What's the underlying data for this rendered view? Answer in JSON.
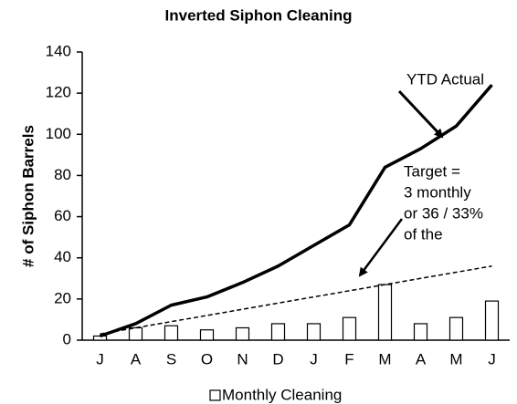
{
  "chart_data": {
    "type": "bar",
    "title": "Inverted Siphon Cleaning",
    "y_label": "# of Siphon Barrels",
    "categories": [
      "J",
      "A",
      "S",
      "O",
      "N",
      "D",
      "J",
      "F",
      "M",
      "A",
      "M",
      "J"
    ],
    "series": [
      {
        "name": "Monthly Cleaning",
        "type": "bar",
        "color": "#ffffff",
        "values": [
          2,
          6,
          7,
          5,
          6,
          8,
          8,
          11,
          27,
          8,
          11,
          19
        ]
      },
      {
        "type": "line",
        "color": "#000000",
        "dashed": false,
        "values": [
          2,
          8,
          17,
          21,
          28,
          36,
          46,
          56,
          84,
          93,
          104,
          124
        ]
      },
      {
        "type": "line",
        "color": "#000000",
        "dashed": true,
        "values": [
          3,
          6,
          9,
          12,
          15,
          18,
          21,
          24,
          27,
          30,
          33,
          36
        ]
      }
    ],
    "annotations": [
      "YTD Actual",
      "Target =",
      "3 monthly",
      "or 36 / 33%",
      "of the"
    ],
    "ylim": [
      0,
      140
    ],
    "yticks": [
      0,
      20,
      40,
      60,
      80,
      100,
      120,
      140
    ],
    "grid": false,
    "legend": "bottom"
  }
}
